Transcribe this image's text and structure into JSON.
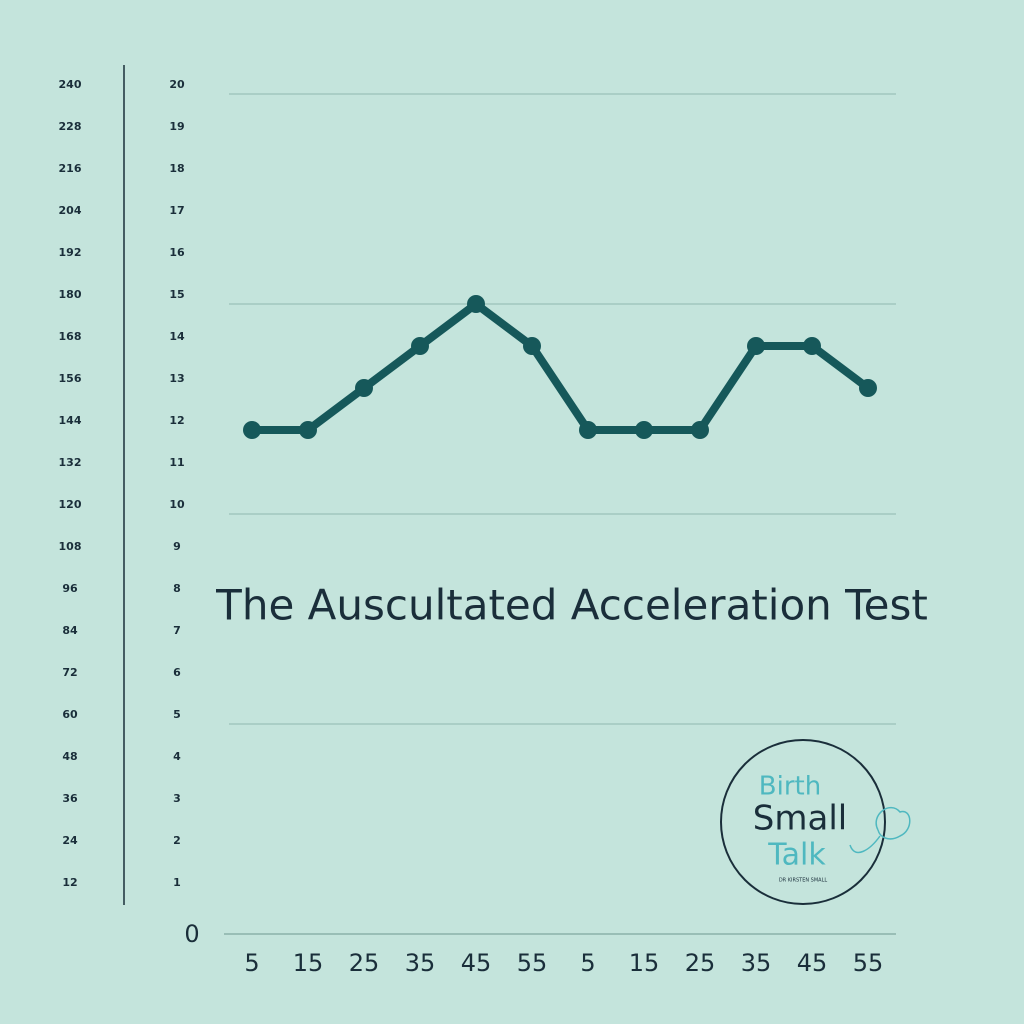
{
  "chart_data": {
    "type": "line",
    "title": "The Auscultated Acceleration Test",
    "categories": [
      5,
      15,
      25,
      35,
      45,
      55,
      5,
      15,
      25,
      35,
      45,
      55
    ],
    "series": [
      {
        "color": "#16585a",
        "values": [
          12,
          12,
          13,
          14,
          15,
          14,
          12,
          12,
          12,
          14,
          14,
          13
        ]
      }
    ],
    "ylim": [
      0,
      20
    ],
    "yticks": [
      0,
      1,
      2,
      3,
      4,
      5,
      6,
      7,
      8,
      9,
      10,
      11,
      12,
      13,
      14,
      15,
      16,
      17,
      18,
      19,
      20
    ],
    "y2lim": [
      0,
      240
    ],
    "y2ticks": [
      12,
      24,
      36,
      48,
      60,
      72,
      84,
      96,
      108,
      120,
      132,
      144,
      156,
      168,
      180,
      192,
      204,
      216,
      228,
      240
    ],
    "grid": true
  },
  "logo": {
    "line1": "Birth",
    "line2": "Small",
    "line3": "Talk",
    "byline": "DR KIRSTEN SMALL"
  }
}
